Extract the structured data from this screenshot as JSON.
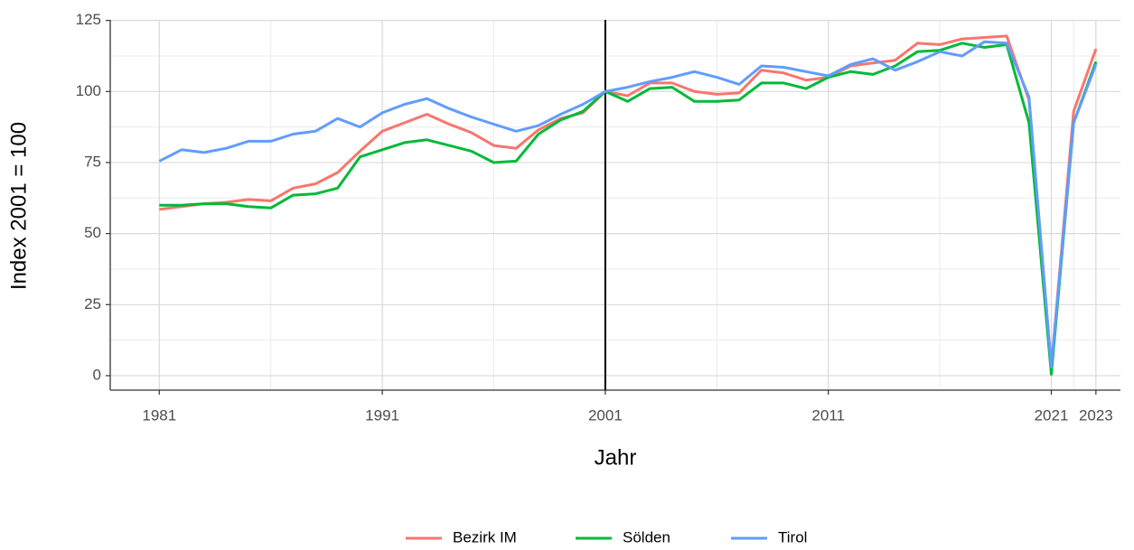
{
  "chart_data": {
    "type": "line",
    "x_label": "Jahr",
    "y_label": "Index 2001 = 100",
    "x": [
      1981,
      1982,
      1983,
      1984,
      1985,
      1986,
      1987,
      1988,
      1989,
      1990,
      1991,
      1992,
      1993,
      1994,
      1995,
      1996,
      1997,
      1998,
      1999,
      2000,
      2001,
      2002,
      2003,
      2004,
      2005,
      2006,
      2007,
      2008,
      2009,
      2010,
      2011,
      2012,
      2013,
      2014,
      2015,
      2016,
      2017,
      2018,
      2019,
      2020,
      2021,
      2022,
      2023
    ],
    "series": [
      {
        "name": "Bezirk IM",
        "color": "#f8766d",
        "values": [
          58.5,
          59.5,
          60.5,
          61,
          62,
          61.5,
          66,
          67.5,
          71.5,
          79,
          86,
          89,
          92,
          88.5,
          85.5,
          81,
          80,
          86.5,
          90.5,
          92.5,
          100,
          98.5,
          103,
          103,
          100,
          99,
          99.5,
          107.5,
          106.5,
          104,
          105,
          109,
          110,
          111,
          117,
          116.5,
          118.5,
          119,
          119.5,
          97,
          3,
          93,
          115
        ]
      },
      {
        "name": "Sölden",
        "color": "#00ba38",
        "values": [
          60,
          60,
          60.5,
          60.5,
          59.5,
          59,
          63.5,
          64,
          66,
          77,
          79.5,
          82,
          83,
          81,
          79,
          75,
          75.5,
          85,
          90,
          93,
          100,
          96.5,
          101,
          101.5,
          96.5,
          96.5,
          97,
          103,
          103,
          101,
          105,
          107,
          106,
          109,
          114,
          114.5,
          117,
          115.5,
          116.5,
          89,
          0.5,
          89,
          110.5
        ]
      },
      {
        "name": "Tirol",
        "color": "#619cff",
        "values": [
          75.5,
          79.5,
          78.5,
          80,
          82.5,
          82.5,
          85,
          86,
          90.5,
          87.5,
          92.5,
          95.5,
          97.5,
          94,
          91,
          88.5,
          86,
          88,
          92,
          95.5,
          100,
          101.5,
          103.5,
          105,
          107,
          105,
          102.5,
          109,
          108.5,
          107,
          105.5,
          109.5,
          111.5,
          107.5,
          110.5,
          114,
          112.5,
          117.5,
          117,
          98,
          3,
          89,
          109.5
        ]
      }
    ],
    "xlim": [
      1978.8,
      2024.1
    ],
    "xticks": [
      1981,
      1991,
      2001,
      2011,
      2021,
      2023
    ],
    "xminor": [
      1986,
      1996,
      2006,
      2016,
      2022
    ],
    "ylim": [
      -5.1,
      125.2
    ],
    "yticks": [
      0,
      25,
      50,
      75,
      100,
      125
    ],
    "yminor": [
      12.5,
      37.5,
      62.5,
      87.5,
      112.5
    ],
    "vline": 2001,
    "grid": true,
    "legend": "bottom"
  }
}
